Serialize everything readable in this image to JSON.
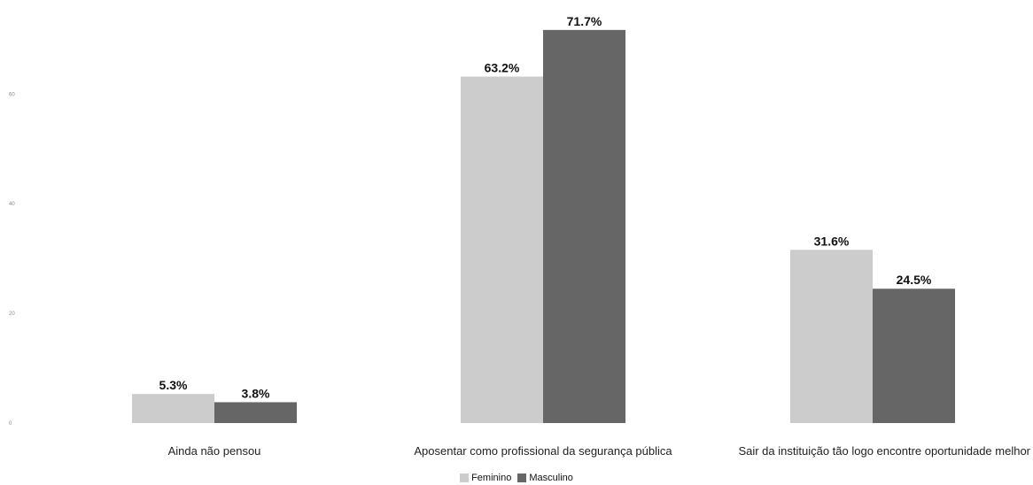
{
  "chart_data": {
    "type": "bar",
    "title": "",
    "xlabel": "",
    "ylabel": "",
    "categories": [
      "Ainda não pensou",
      "Aposentar como profissional da segurança pública",
      "Sair da instituição tão logo encontre oportunidade melhor"
    ],
    "series": [
      {
        "name": "Feminino",
        "color": "#cccccc",
        "values": [
          5.3,
          63.2,
          31.6
        ]
      },
      {
        "name": "Masculino",
        "color": "#666666",
        "values": [
          3.8,
          71.7,
          24.5
        ]
      }
    ],
    "value_suffix": "%",
    "yticks": [
      "0",
      "20",
      "40",
      "60"
    ],
    "ylim": [
      0,
      72
    ],
    "grid": false,
    "legend_position": "bottom"
  }
}
